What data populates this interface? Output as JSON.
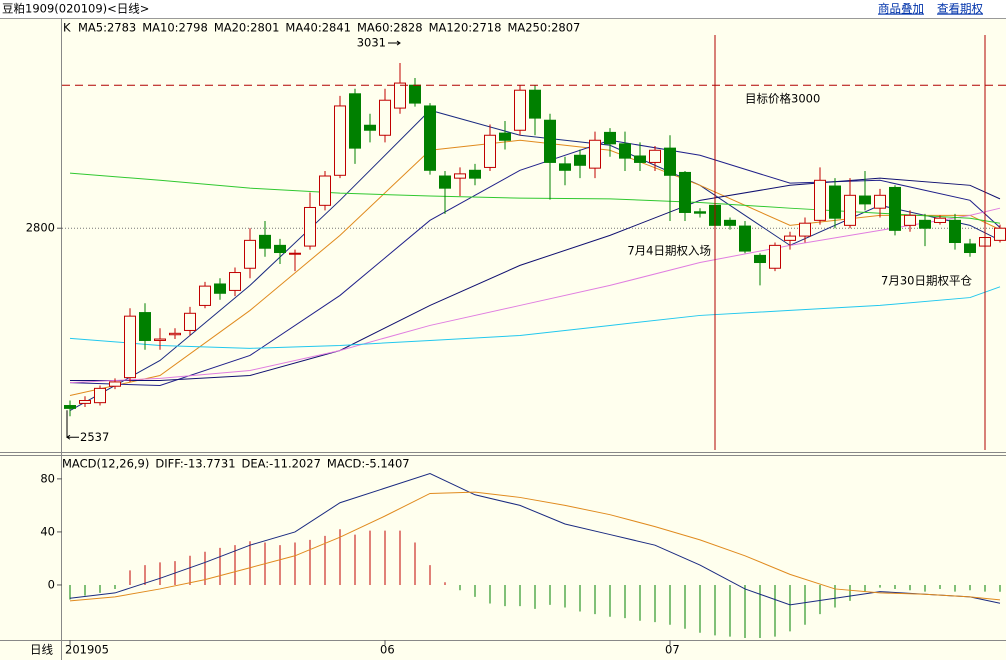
{
  "header": {
    "title": "豆粕1909(020109)<日线>",
    "links": [
      "商品叠加",
      "查看期权"
    ]
  },
  "footer": {
    "label": "日线"
  },
  "chart_data": [
    {
      "type": "candlestick",
      "axis_label": "K",
      "categories": [
        "201905",
        null,
        null,
        null,
        null,
        null,
        null,
        null,
        null,
        null,
        null,
        null,
        null,
        null,
        null,
        null,
        null,
        null,
        null,
        null,
        null,
        "06",
        null,
        null,
        null,
        null,
        null,
        null,
        null,
        null,
        null,
        null,
        null,
        null,
        null,
        null,
        null,
        null,
        null,
        null,
        "07",
        null,
        null,
        null,
        null,
        null,
        null,
        null,
        null,
        null,
        null,
        null,
        null,
        null,
        null,
        null,
        null,
        null,
        null,
        null,
        null,
        null,
        null
      ],
      "open": [
        2552,
        2555,
        2556,
        2579,
        2591,
        2682,
        2643,
        2651,
        2657,
        2692,
        2722,
        2713,
        2744,
        2790,
        2776,
        2764,
        2775,
        2832,
        2874,
        2988,
        2944,
        2930,
        2968,
        3000,
        2971,
        2873,
        2870,
        2881,
        2885,
        2933,
        2937,
        2993,
        2951,
        2890,
        2902,
        2884,
        2934,
        2918,
        2901,
        2892,
        2912,
        2878,
        2823,
        2832,
        2811,
        2803,
        2762,
        2744,
        2783,
        2789,
        2811,
        2859,
        2804,
        2845,
        2828,
        2857,
        2804,
        2811,
        2808,
        2811,
        2778,
        2775,
        2783
      ],
      "high": [
        2559,
        2565,
        2580,
        2590,
        2688,
        2695,
        2660,
        2660,
        2690,
        2725,
        2730,
        2745,
        2800,
        2810,
        2785,
        2770,
        2850,
        2880,
        2985,
        2995,
        2960,
        2995,
        3031,
        3010,
        2975,
        2880,
        2885,
        2890,
        2945,
        2950,
        3000,
        3000,
        2960,
        2900,
        2910,
        2935,
        2940,
        2935,
        2920,
        2915,
        2930,
        2880,
        2828,
        2835,
        2815,
        2810,
        2765,
        2780,
        2795,
        2815,
        2885,
        2870,
        2870,
        2880,
        2855,
        2860,
        2825,
        2820,
        2818,
        2820,
        2785,
        2790,
        2805
      ],
      "low": [
        2537,
        2550,
        2552,
        2575,
        2585,
        2630,
        2630,
        2645,
        2650,
        2688,
        2700,
        2705,
        2730,
        2760,
        2750,
        2740,
        2770,
        2825,
        2870,
        2890,
        2920,
        2920,
        2960,
        2970,
        2875,
        2820,
        2845,
        2860,
        2880,
        2910,
        2930,
        2930,
        2840,
        2860,
        2870,
        2870,
        2900,
        2880,
        2880,
        2880,
        2810,
        2810,
        2815,
        2800,
        2798,
        2765,
        2720,
        2740,
        2770,
        2780,
        2805,
        2800,
        2800,
        2825,
        2815,
        2790,
        2795,
        2775,
        2805,
        2770,
        2760,
        2770,
        2780
      ],
      "close": [
        2548,
        2559,
        2576,
        2585,
        2677,
        2643,
        2645,
        2653,
        2681,
        2719,
        2709,
        2738,
        2783,
        2772,
        2766,
        2765,
        2829,
        2873,
        2971,
        2912,
        2937,
        2979,
        3003,
        2975,
        2881,
        2856,
        2876,
        2870,
        2930,
        2923,
        2993,
        2954,
        2892,
        2881,
        2888,
        2923,
        2918,
        2898,
        2892,
        2909,
        2874,
        2822,
        2821,
        2804,
        2804,
        2768,
        2752,
        2776,
        2789,
        2807,
        2867,
        2814,
        2846,
        2834,
        2846,
        2797,
        2818,
        2800,
        2814,
        2780,
        2766,
        2787,
        2800
      ],
      "up_color": "#c00000",
      "down_color": "#008000",
      "series": [
        {
          "name": "MA5:2783",
          "color": "#1a2a80",
          "x": [
            0,
            6,
            12,
            18,
            24,
            30,
            36,
            42,
            48,
            54,
            60,
            62
          ],
          "values": [
            2545,
            2615,
            2720,
            2839,
            2965,
            2930,
            2916,
            2860,
            2776,
            2832,
            2804,
            2783
          ]
        },
        {
          "name": "MA10:2798",
          "color": "#e08a1e",
          "x": [
            0,
            6,
            12,
            18,
            24,
            30,
            36,
            42,
            48,
            54,
            60,
            62
          ],
          "values": [
            2566,
            2594,
            2685,
            2790,
            2909,
            2923,
            2909,
            2860,
            2804,
            2818,
            2818,
            2798
          ]
        },
        {
          "name": "MA20:2801",
          "color": "#20208a",
          "x": [
            0,
            6,
            12,
            18,
            24,
            30,
            36,
            42,
            48,
            54,
            60,
            62
          ],
          "values": [
            2584,
            2580,
            2622,
            2706,
            2811,
            2881,
            2923,
            2902,
            2863,
            2867,
            2839,
            2801
          ]
        },
        {
          "name": "MA40:2841",
          "color": "#101070",
          "x": [
            0,
            6,
            12,
            18,
            24,
            30,
            36,
            42,
            48,
            54,
            60,
            62
          ],
          "values": [
            2587,
            2587,
            2594,
            2629,
            2692,
            2748,
            2790,
            2839,
            2860,
            2870,
            2860,
            2841
          ]
        },
        {
          "name": "MA60:2828",
          "color": "#e07ee0",
          "x": [
            0,
            6,
            12,
            18,
            24,
            30,
            36,
            42,
            48,
            54,
            60,
            62
          ],
          "values": [
            2584,
            2590,
            2601,
            2629,
            2664,
            2692,
            2720,
            2752,
            2776,
            2797,
            2818,
            2828
          ]
        },
        {
          "name": "MA120:2718",
          "color": "#22c8ee",
          "x": [
            0,
            6,
            12,
            18,
            24,
            30,
            36,
            42,
            48,
            54,
            60,
            62
          ],
          "values": [
            2646,
            2636,
            2632,
            2636,
            2643,
            2650,
            2664,
            2678,
            2685,
            2692,
            2703,
            2718
          ]
        },
        {
          "name": "MA250:2807",
          "color": "#30c830",
          "x": [
            0,
            6,
            12,
            18,
            24,
            30,
            36,
            42,
            48,
            54,
            60,
            62
          ],
          "values": [
            2877,
            2867,
            2856,
            2849,
            2845,
            2842,
            2841,
            2836,
            2828,
            2821,
            2814,
            2807
          ]
        }
      ],
      "target": {
        "value": 3000,
        "label": "目标价格3000",
        "color": "#b00000"
      },
      "events": [
        {
          "index": 43,
          "label": "7月4日期权入场"
        },
        {
          "index": 61,
          "label": "7月30日期权平仓"
        }
      ],
      "ylim": [
        2487,
        3094
      ],
      "yticks": [
        2800
      ],
      "grid": true
    },
    {
      "type": "macd",
      "title": "MACD(12,26,9)",
      "name": "MACD:-5.1407",
      "values": [
        -11,
        -8,
        -6,
        -3,
        11,
        15,
        17,
        18,
        22,
        25,
        28,
        30,
        33,
        32,
        30,
        32,
        34,
        37,
        42,
        38,
        41,
        41,
        41,
        32,
        15,
        2,
        -4,
        -9,
        -14,
        -16,
        -16,
        -18,
        -15,
        -17,
        -20,
        -22,
        -24,
        -25,
        -27,
        -28,
        -30,
        -33,
        -36,
        -38,
        -39,
        -40,
        -40,
        -39,
        -35,
        -30,
        -22,
        -17,
        -12,
        -5,
        -2,
        -3,
        -4,
        -5,
        -3,
        -5,
        -4,
        -5,
        -5.1407
      ],
      "up_color": "#c00000",
      "down_color": "#008000",
      "series": [
        {
          "name": "DIFF:-13.7731",
          "color": "#1a2a80",
          "x": [
            0,
            3,
            6,
            9,
            12,
            15,
            18,
            21,
            24,
            27,
            30,
            33,
            36,
            39,
            42,
            45,
            48,
            51,
            54,
            57,
            60,
            62
          ],
          "values": [
            -10,
            -6,
            5,
            17,
            30,
            40,
            62,
            73,
            84,
            68,
            60,
            46,
            38,
            30,
            15,
            -3,
            -15,
            -10,
            -5,
            -7,
            -9,
            -13.7731
          ]
        },
        {
          "name": "DEA:-11.2027",
          "color": "#e08a1e",
          "x": [
            0,
            3,
            6,
            9,
            12,
            15,
            18,
            21,
            24,
            27,
            30,
            33,
            36,
            39,
            42,
            45,
            48,
            51,
            54,
            57,
            60,
            62
          ],
          "values": [
            -12,
            -9,
            -3,
            4,
            13,
            22,
            36,
            52,
            69,
            70,
            66,
            60,
            53,
            44,
            34,
            22,
            8,
            -3,
            -6,
            -7,
            -9,
            -11.2027
          ]
        }
      ],
      "ylim": [
        -41.5,
        98
      ],
      "yticks": [
        0,
        40,
        80
      ]
    }
  ]
}
